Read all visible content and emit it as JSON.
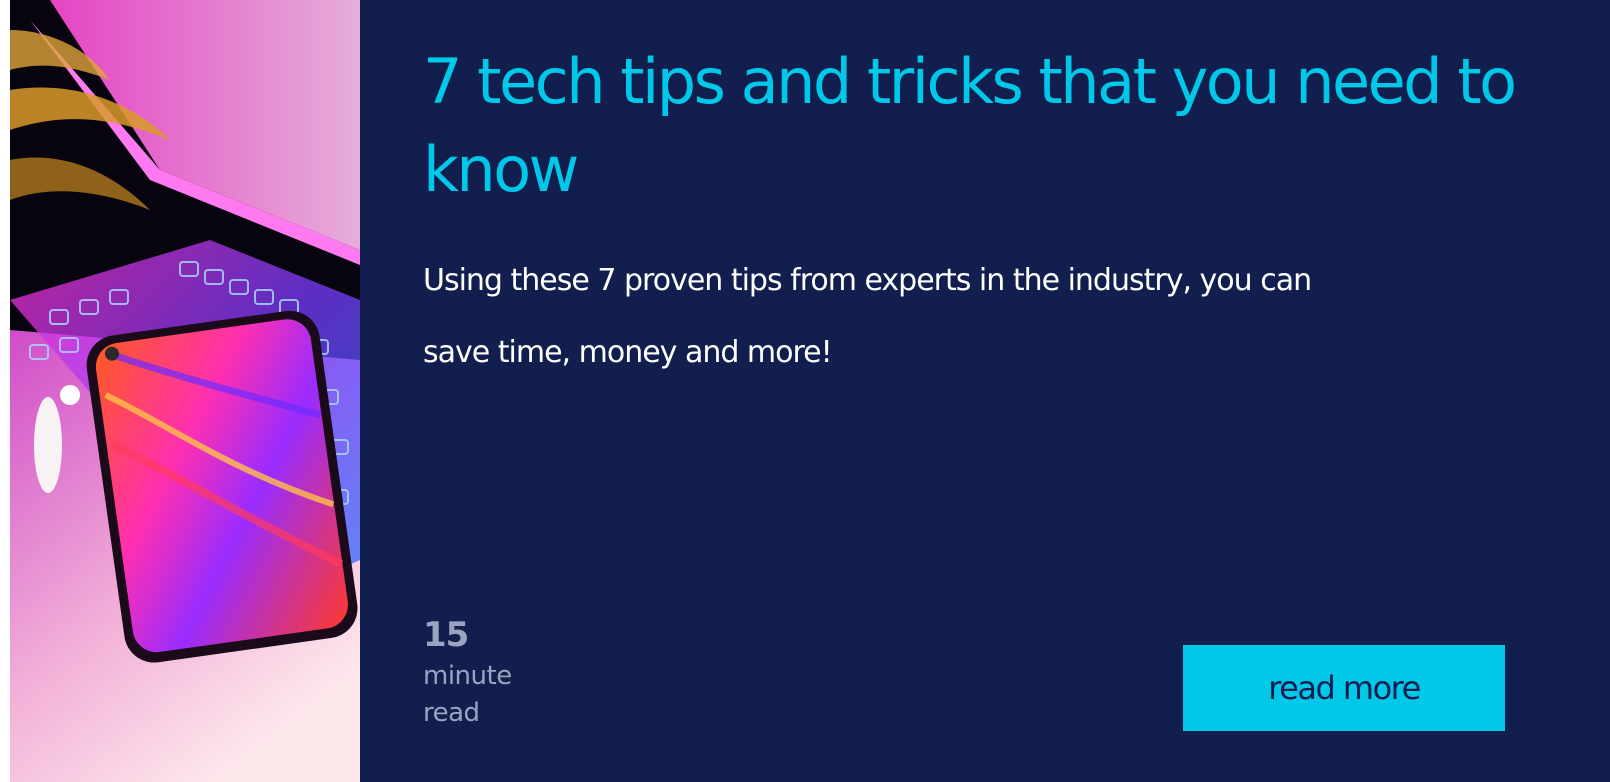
{
  "article": {
    "title": "7 tech tips and tricks that you need to know",
    "excerpt": "Using these 7 proven tips from experts in the industry, you can save time, money and more!",
    "read_time": {
      "number": "15",
      "unit_line1": "minute",
      "unit_line2": "read"
    },
    "read_more_label": "read more",
    "image": "neon-laptop-and-smartphone-photo"
  },
  "colors": {
    "accent": "#00c8e8",
    "panel_background": "#121e4e",
    "body_text": "#ffffff",
    "muted_text": "#9aa3bf"
  }
}
